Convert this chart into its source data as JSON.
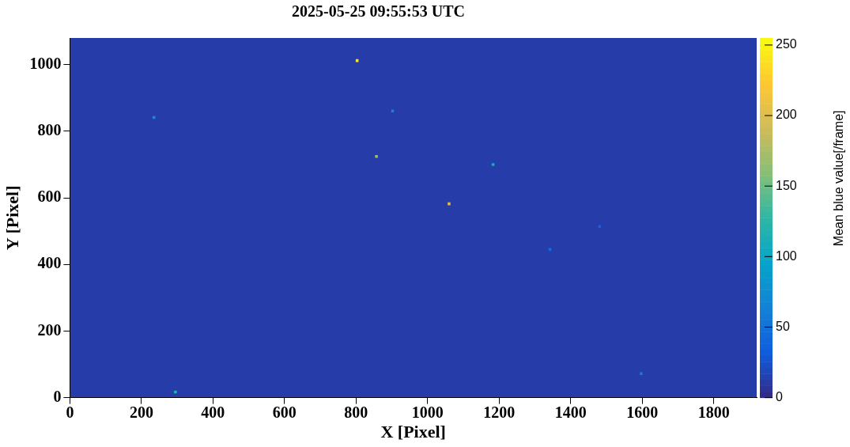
{
  "chart_data": {
    "type": "scatter",
    "title": "2025-05-25 09:55:53 UTC",
    "xlabel": "X [Pixel]",
    "ylabel": "Y [Pixel]",
    "clabel": "Mean blue value[/frame]",
    "x": [
      803,
      235,
      902,
      857,
      1183,
      1060,
      1342,
      295,
      1597,
      1481
    ],
    "values": [
      1012,
      841,
      861,
      724,
      700,
      582,
      445,
      17,
      72,
      514
    ],
    "cvalues": [
      240,
      80,
      70,
      170,
      110,
      200,
      50,
      120,
      60,
      40
    ],
    "marker": "square",
    "xlim": [
      0,
      1920
    ],
    "xticks": [
      0,
      200,
      400,
      600,
      800,
      1000,
      1200,
      1400,
      1600,
      1800
    ],
    "ylim": [
      0,
      1080
    ],
    "yticks": [
      0,
      200,
      400,
      600,
      800,
      1000
    ],
    "clim": [
      0,
      255
    ],
    "cticks": [
      0,
      50,
      100,
      150,
      200,
      250
    ],
    "grid": false,
    "legend": false
  }
}
